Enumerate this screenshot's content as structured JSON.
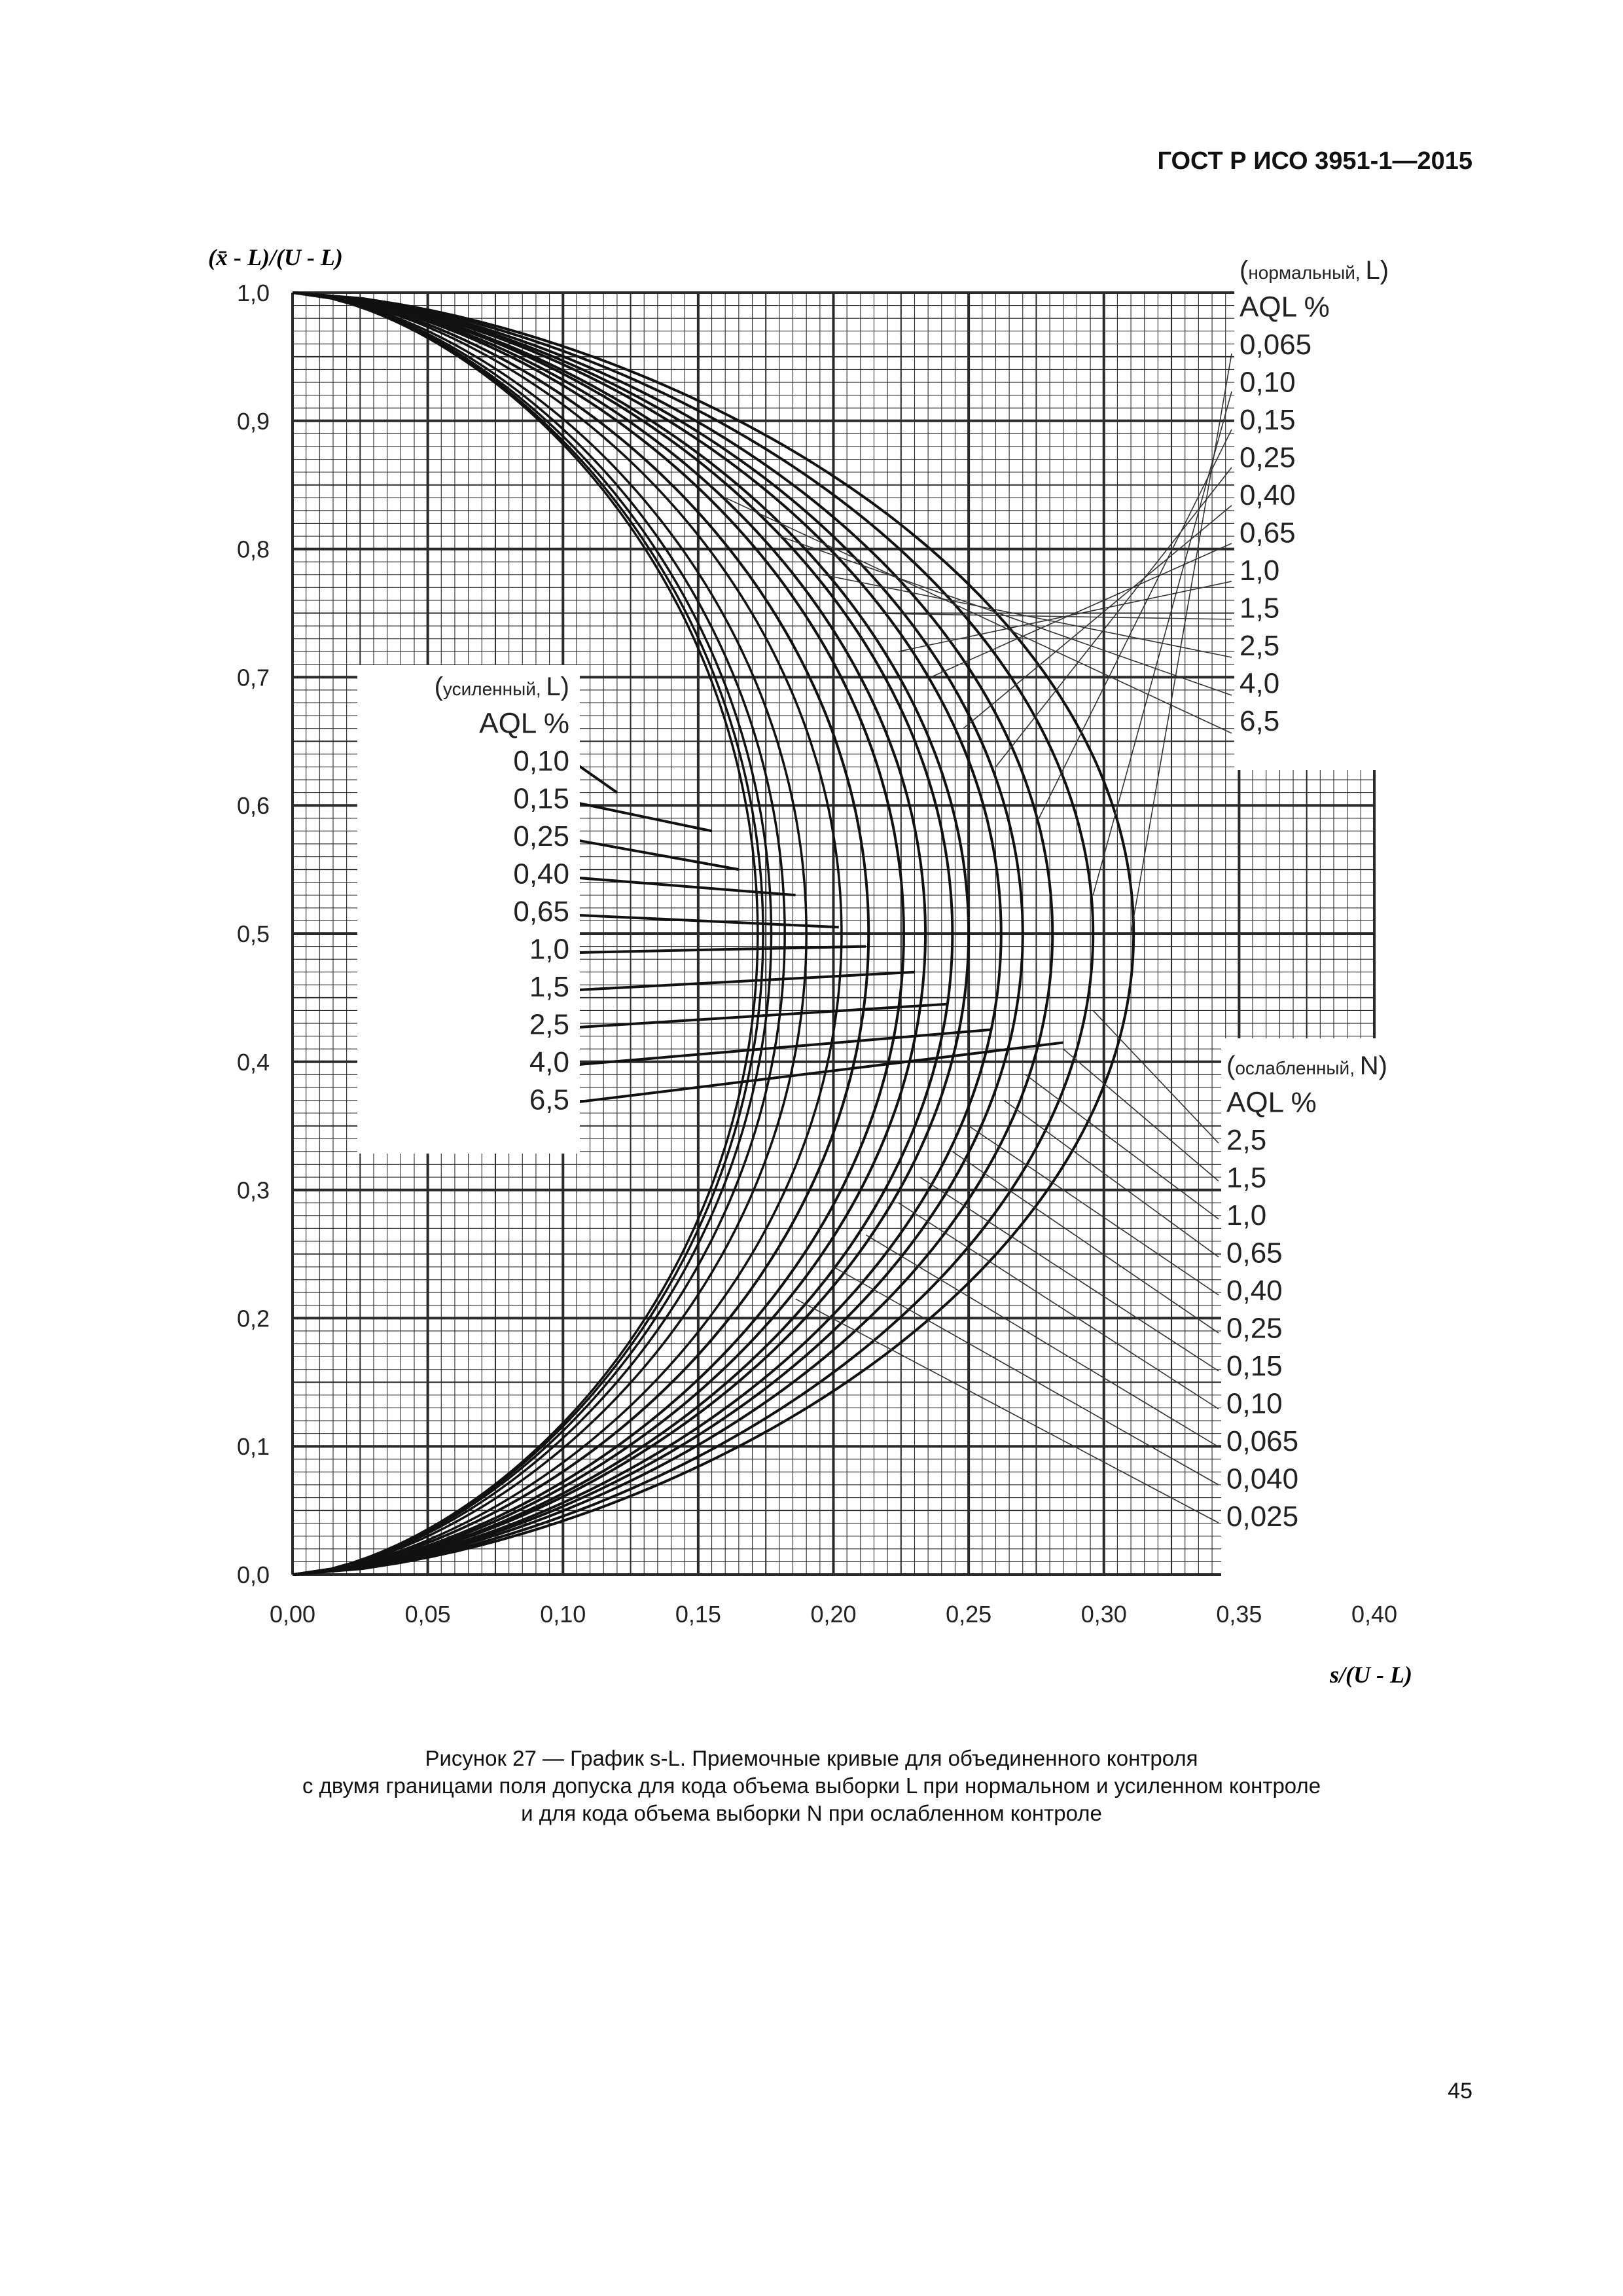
{
  "header": {
    "standard": "ГОСТ Р ИСО 3951-1—2015"
  },
  "page_number": "45",
  "caption": {
    "line1": "Рисунок 27 — График s-L. Приемочные кривые для объединенного контроля",
    "line2": "с двумя границами поля допуска для кода объема выборки L при нормальном и усиленном контроле",
    "line3": "и для кода объема выборки N при ослабленном контроле"
  },
  "chart_data": {
    "type": "line",
    "title": "",
    "ylabel": "(x̄ - L)/(U - L)",
    "xlabel": "s/(U - L)",
    "xlim": [
      0,
      0.4
    ],
    "ylim": [
      0,
      1.0
    ],
    "grid": true,
    "x_ticks": [
      "0,00",
      "0,05",
      "0,10",
      "0,15",
      "0,20",
      "0,25",
      "0,30",
      "0,35",
      "0,40"
    ],
    "y_ticks": [
      "0,0",
      "0,1",
      "0,2",
      "0,3",
      "0,4",
      "0,5",
      "0,6",
      "0,7",
      "0,8",
      "0,9",
      "1,0"
    ],
    "legend_normal": {
      "title": "нормальный,",
      "code": "L",
      "aql_header": "AQL %",
      "labels": [
        "0,065",
        "0,10",
        "0,15",
        "0,25",
        "0,40",
        "0,65",
        "1,0",
        "1,5",
        "2,5",
        "4,0",
        "6,5"
      ],
      "position": "top-right"
    },
    "legend_tightened": {
      "title": "усиленный,",
      "code": "L",
      "aql_header": "AQL %",
      "labels": [
        "0,10",
        "0,15",
        "0,25",
        "0,40",
        "0,65",
        "1,0",
        "1,5",
        "2,5",
        "4,0",
        "6,5"
      ],
      "position": "middle-left"
    },
    "legend_reduced": {
      "title": "ослабленный,",
      "code": "N",
      "aql_header": "AQL %",
      "labels": [
        "2,5",
        "1,5",
        "1,0",
        "0,65",
        "0,40",
        "0,25",
        "0,15",
        "0,10",
        "0,065",
        "0,040",
        "0,025"
      ],
      "position": "bottom-right"
    },
    "series": [
      {
        "s_max": 0.311
      },
      {
        "s_max": 0.296
      },
      {
        "s_max": 0.281
      },
      {
        "s_max": 0.27
      },
      {
        "s_max": 0.262
      },
      {
        "s_max": 0.25
      },
      {
        "s_max": 0.244
      },
      {
        "s_max": 0.234
      },
      {
        "s_max": 0.226
      },
      {
        "s_max": 0.213
      },
      {
        "s_max": 0.203
      },
      {
        "s_max": 0.19
      },
      {
        "s_max": 0.182
      },
      {
        "s_max": 0.177
      },
      {
        "s_max": 0.174
      },
      {
        "s_max": 0.172
      }
    ],
    "leaders_normal": [
      {
        "x": 0.31,
        "y": 0.5
      },
      {
        "x": 0.296,
        "y": 0.53
      },
      {
        "x": 0.276,
        "y": 0.59
      },
      {
        "x": 0.26,
        "y": 0.63
      },
      {
        "x": 0.248,
        "y": 0.66
      },
      {
        "x": 0.236,
        "y": 0.7
      },
      {
        "x": 0.224,
        "y": 0.72
      },
      {
        "x": 0.21,
        "y": 0.75
      },
      {
        "x": 0.196,
        "y": 0.78
      },
      {
        "x": 0.18,
        "y": 0.81
      },
      {
        "x": 0.16,
        "y": 0.84
      }
    ],
    "leaders_tightened": [
      {
        "x": 0.12,
        "y": 0.61
      },
      {
        "x": 0.155,
        "y": 0.58
      },
      {
        "x": 0.165,
        "y": 0.55
      },
      {
        "x": 0.186,
        "y": 0.53
      },
      {
        "x": 0.202,
        "y": 0.505
      },
      {
        "x": 0.212,
        "y": 0.49
      },
      {
        "x": 0.23,
        "y": 0.47
      },
      {
        "x": 0.242,
        "y": 0.445
      },
      {
        "x": 0.258,
        "y": 0.425
      },
      {
        "x": 0.285,
        "y": 0.415
      }
    ],
    "leaders_reduced": [
      {
        "x": 0.296,
        "y": 0.44
      },
      {
        "x": 0.285,
        "y": 0.41
      },
      {
        "x": 0.271,
        "y": 0.39
      },
      {
        "x": 0.263,
        "y": 0.37
      },
      {
        "x": 0.25,
        "y": 0.35
      },
      {
        "x": 0.244,
        "y": 0.33
      },
      {
        "x": 0.232,
        "y": 0.31
      },
      {
        "x": 0.224,
        "y": 0.29
      },
      {
        "x": 0.212,
        "y": 0.265
      },
      {
        "x": 0.2,
        "y": 0.24
      },
      {
        "x": 0.186,
        "y": 0.215
      }
    ]
  }
}
